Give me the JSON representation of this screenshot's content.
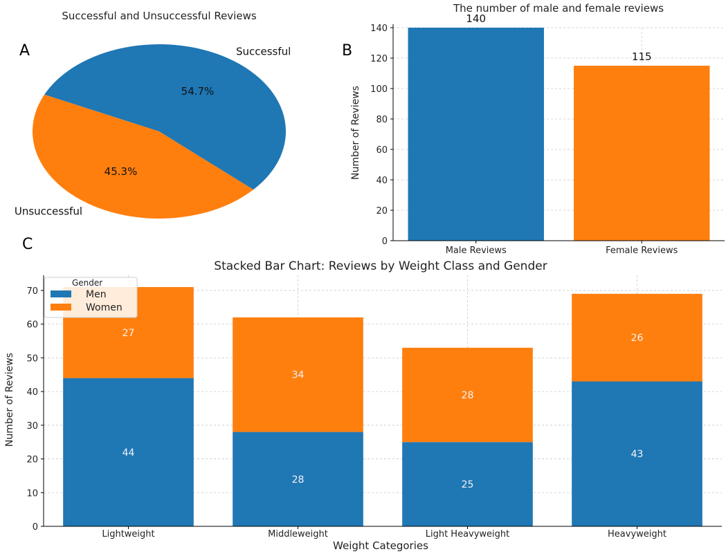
{
  "panel_letters": [
    "A",
    "B",
    "C"
  ],
  "chart_data": [
    {
      "type": "pie",
      "panel": "A",
      "title": "Successful and Unsuccessful Reviews",
      "slices": [
        {
          "label": "Unsuccessful",
          "value": 45.3,
          "pct_label": "45.3%",
          "color": "#ff7f0e"
        },
        {
          "label": "Successful",
          "value": 54.7,
          "pct_label": "54.7%",
          "color": "#1f77b4"
        }
      ],
      "start_angle": 155,
      "direction": "counterclockwise"
    },
    {
      "type": "bar",
      "panel": "B",
      "title": "The number of male and female reviews",
      "categories": [
        "Male Reviews",
        "Female Reviews"
      ],
      "values": [
        140,
        115
      ],
      "value_labels": [
        "140",
        "115"
      ],
      "colors": [
        "#1f77b4",
        "#ff7f0e"
      ],
      "xlabel": "",
      "ylabel": "Number of Reviews",
      "ylim": [
        0,
        140
      ],
      "yticks": [
        0,
        20,
        40,
        60,
        80,
        100,
        120,
        140
      ],
      "grid": true
    },
    {
      "type": "bar",
      "stacked": true,
      "panel": "C",
      "title": "Stacked Bar Chart: Reviews by Weight Class and Gender",
      "categories": [
        "Lightweight",
        "Middleweight",
        "Light Heavyweight",
        "Heavyweight"
      ],
      "series": [
        {
          "name": "Men",
          "values": [
            44,
            28,
            25,
            43
          ],
          "color": "#1f77b4"
        },
        {
          "name": "Women",
          "values": [
            27,
            34,
            28,
            26
          ],
          "color": "#ff7f0e"
        }
      ],
      "xlabel": "Weight Categories",
      "ylabel": "Number of Reviews",
      "ylim": [
        0,
        74.5
      ],
      "yticks": [
        0,
        10,
        20,
        30,
        40,
        50,
        60,
        70
      ],
      "legend_title": "Gender",
      "legend_position": "top-left",
      "grid": true
    }
  ]
}
